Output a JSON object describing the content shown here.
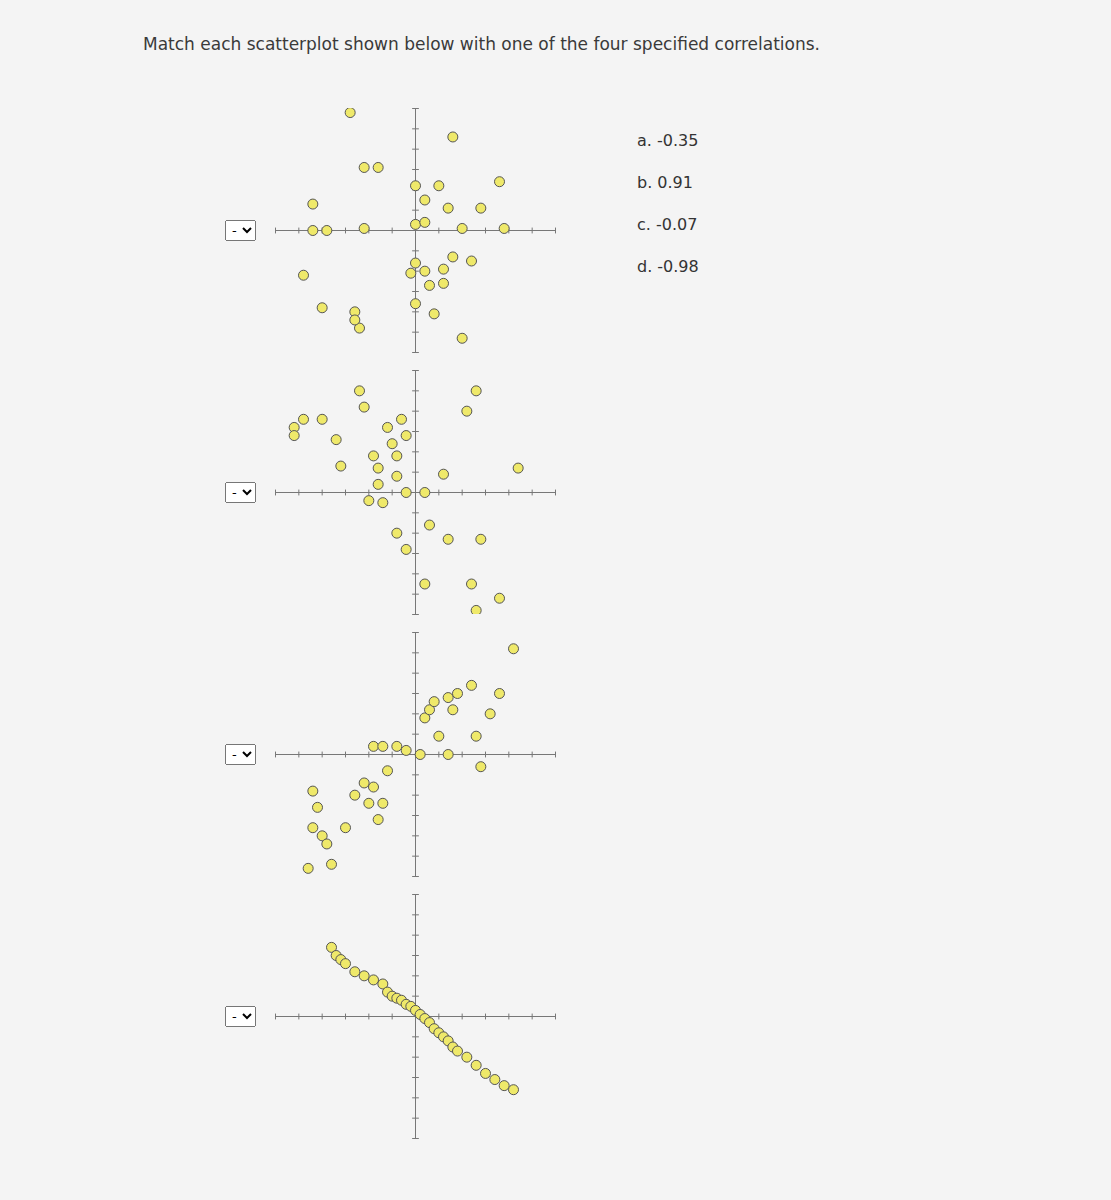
{
  "question": "Match each scatterplot shown below with one of the four specified correlations.",
  "options": [
    "a. -0.35",
    "b. 0.91",
    "c. -0.07",
    "d. -0.98"
  ],
  "dropdowns": [
    "-",
    "-",
    "-",
    "-"
  ],
  "chart_data": [
    {
      "type": "scatter",
      "color": "#efe96a",
      "tick_labels": false,
      "xlim": [
        -6,
        6
      ],
      "ylim": [
        -6,
        6
      ],
      "xticks": [
        -6,
        -5,
        -4,
        -3,
        -2,
        -1,
        0,
        1,
        2,
        3,
        4,
        5,
        6
      ],
      "yticks": [
        -6,
        -5,
        -4,
        -3,
        -2,
        -1,
        0,
        1,
        2,
        3,
        4,
        5,
        6
      ],
      "x": [
        -2.8,
        1.6,
        -2.2,
        -1.6,
        0,
        1,
        3.6,
        -4.4,
        0.4,
        1.4,
        2.8,
        -4.4,
        -3.8,
        -2.2,
        0,
        0.4,
        2,
        3.8,
        -4.8,
        -4,
        -2.6,
        -2.4,
        0,
        0.8,
        1.6,
        2.4,
        -0.2,
        0.4,
        1.2,
        0.6,
        1.2,
        0,
        2,
        -2.6
      ],
      "values": [
        5.8,
        4.6,
        3.1,
        3.1,
        2.2,
        2.2,
        2.4,
        1.3,
        1.5,
        1.1,
        1.1,
        0,
        0,
        0.1,
        0.3,
        0.4,
        0.1,
        0.1,
        -2.2,
        -3.8,
        -4,
        -4.8,
        -3.6,
        -4.1,
        -1.3,
        -1.5,
        -2.1,
        -2,
        -1.9,
        -2.7,
        -2.6,
        -1.6,
        -5.3,
        -4.4
      ]
    },
    {
      "type": "scatter",
      "color": "#efe96a",
      "tick_labels": false,
      "xlim": [
        -6,
        6
      ],
      "ylim": [
        -6,
        6
      ],
      "xticks": [
        -6,
        -5,
        -4,
        -3,
        -2,
        -1,
        0,
        1,
        2,
        3,
        4,
        5,
        6
      ],
      "yticks": [
        -6,
        -5,
        -4,
        -3,
        -2,
        -1,
        0,
        1,
        2,
        3,
        4,
        5,
        6
      ],
      "x": [
        -2.4,
        -2.2,
        -5.2,
        -4.8,
        -4,
        -5.2,
        -3.4,
        -3.2,
        -1.8,
        -1,
        -0.6,
        -0.4,
        -1.2,
        -0.8,
        -1.6,
        -0.8,
        -1.6,
        -2,
        -1.4,
        -0.4,
        0.4,
        1.2,
        2.2,
        2.6,
        4.4,
        -0.8,
        -0.4,
        0.6,
        1.4,
        2.8,
        0.4,
        2.4,
        2.6,
        3.6
      ],
      "values": [
        5,
        4.2,
        3.2,
        3.6,
        3.6,
        2.8,
        2.6,
        1.3,
        1.8,
        2.4,
        3.6,
        2.8,
        3.2,
        1.8,
        1.2,
        0.8,
        0.4,
        -0.4,
        -0.5,
        0,
        0,
        0.9,
        4,
        5,
        1.2,
        -2,
        -2.8,
        -1.6,
        -2.3,
        -2.3,
        -4.5,
        -4.5,
        -5.8,
        -5.2
      ]
    },
    {
      "type": "scatter",
      "color": "#efe96a",
      "tick_labels": false,
      "xlim": [
        -6,
        6
      ],
      "ylim": [
        -6,
        6
      ],
      "xticks": [
        -6,
        -5,
        -4,
        -3,
        -2,
        -1,
        0,
        1,
        2,
        3,
        4,
        5,
        6
      ],
      "yticks": [
        -6,
        -5,
        -4,
        -3,
        -2,
        -1,
        0,
        1,
        2,
        3,
        4,
        5,
        6
      ],
      "x": [
        -4.4,
        -4.2,
        -4.4,
        -4,
        -3.8,
        -4.6,
        -3.6,
        -3,
        -2.6,
        -2.2,
        -1.8,
        -2,
        -1.4,
        -1.6,
        -1.2,
        -1.8,
        -1.4,
        -0.8,
        -0.4,
        0.2,
        0.4,
        0.6,
        0.8,
        1,
        1.4,
        1.6,
        1.4,
        1.8,
        2.4,
        2.6,
        3.2,
        3.6,
        4.2,
        2.8
      ],
      "values": [
        -1.8,
        -2.6,
        -3.6,
        -4,
        -4.4,
        -5.6,
        -5.4,
        -3.6,
        -2,
        -1.4,
        -1.6,
        -2.4,
        -2.4,
        -3.2,
        -0.8,
        0.4,
        0.4,
        0.4,
        0.2,
        0,
        1.8,
        2.2,
        2.6,
        0.9,
        0,
        2.2,
        2.8,
        3,
        3.4,
        0.9,
        2,
        3,
        5.2,
        -0.6
      ]
    },
    {
      "type": "scatter",
      "color": "#efe96a",
      "tick_labels": false,
      "xlim": [
        -6,
        6
      ],
      "ylim": [
        -6,
        6
      ],
      "xticks": [
        -6,
        -5,
        -4,
        -3,
        -2,
        -1,
        0,
        1,
        2,
        3,
        4,
        5,
        6
      ],
      "yticks": [
        -6,
        -5,
        -4,
        -3,
        -2,
        -1,
        0,
        1,
        2,
        3,
        4,
        5,
        6
      ],
      "x": [
        -3.6,
        -3.4,
        -3.2,
        -3,
        -2.6,
        -2.2,
        -1.8,
        -1.4,
        -1.2,
        -1,
        -0.8,
        -0.6,
        -0.4,
        -0.2,
        0,
        0.2,
        0.4,
        0.6,
        0.8,
        1,
        1.2,
        1.4,
        1.6,
        1.8,
        2.2,
        2.6,
        3,
        3.4,
        3.8,
        4.2
      ],
      "values": [
        3.4,
        3,
        2.8,
        2.6,
        2.2,
        2,
        1.8,
        1.6,
        1.2,
        1,
        0.9,
        0.8,
        0.6,
        0.5,
        0.3,
        0.1,
        -0.1,
        -0.3,
        -0.6,
        -0.8,
        -1,
        -1.2,
        -1.5,
        -1.7,
        -2,
        -2.4,
        -2.8,
        -3.1,
        -3.4,
        -3.6
      ]
    }
  ]
}
